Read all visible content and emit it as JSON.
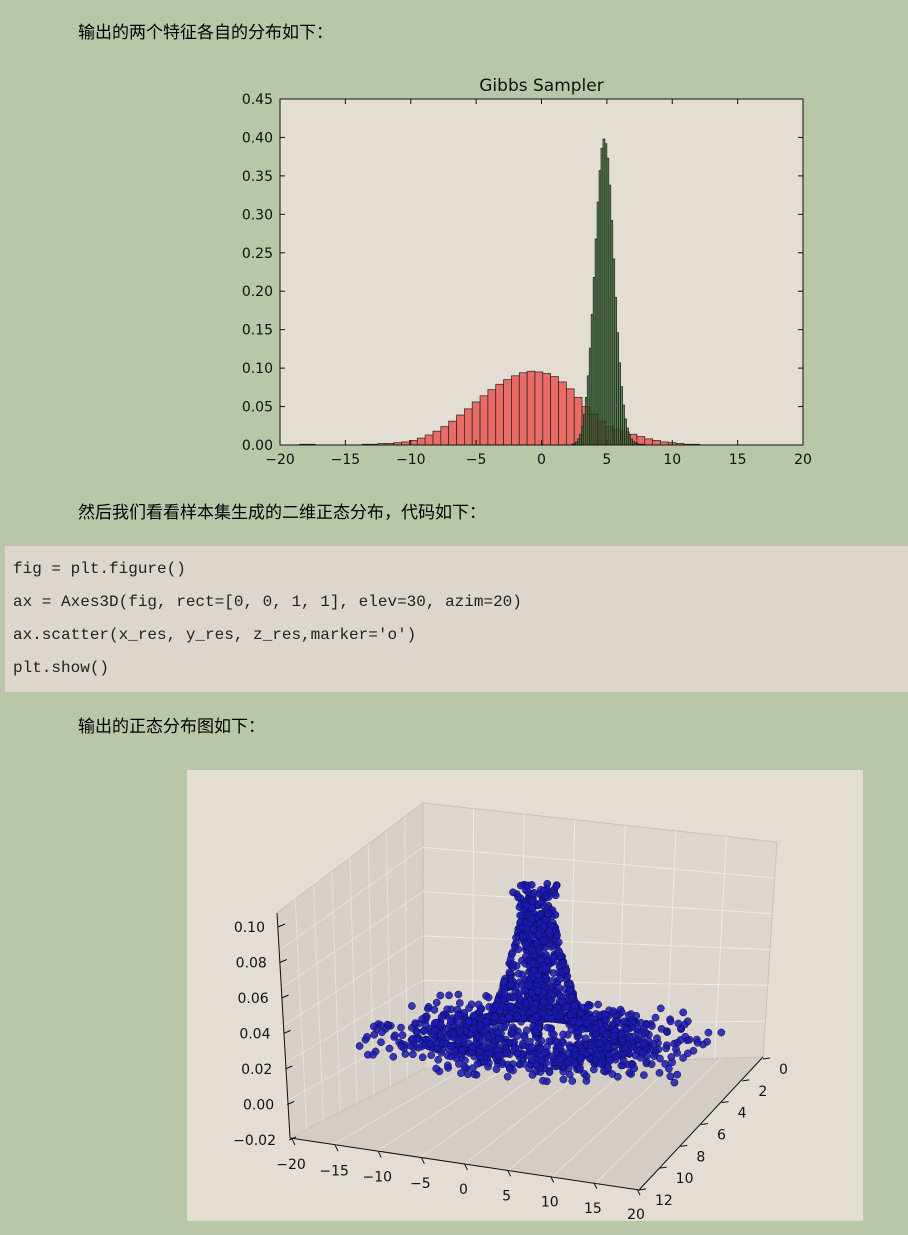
{
  "paragraphs": {
    "p1": "输出的两个特征各自的分布如下：",
    "p2": "然后我们看看样本集生成的二维正态分布，代码如下：",
    "p3": "输出的正态分布图如下："
  },
  "code_lines": [
    "fig = plt.figure()",
    "ax = Axes3D(fig, rect=[0, 0, 1, 1], elev=30, azim=20)",
    "ax.scatter(x_res, y_res, z_res,marker='o')",
    "plt.show()"
  ],
  "colors": {
    "page_bg": "#b8c7a8",
    "plot_bg": "#e4ddd4",
    "red_bar": "#e8645f",
    "green_bar": "#2d6b2a",
    "scatter_blue": "#1a1ab0"
  },
  "chart_data": [
    {
      "type": "bar",
      "title": "Gibbs Sampler",
      "xlim": [
        -20,
        20
      ],
      "ylim": [
        0,
        0.45
      ],
      "xticks": [
        "−20",
        "−15",
        "−10",
        "−5",
        "0",
        "5",
        "10",
        "15",
        "20"
      ],
      "yticks": [
        "0.00",
        "0.05",
        "0.10",
        "0.15",
        "0.20",
        "0.25",
        "0.30",
        "0.35",
        "0.40",
        "0.45"
      ],
      "grid": false,
      "series": [
        {
          "color": "#e8645f",
          "bin_width": 0.6,
          "x": [
            -18.5,
            -17.9,
            -13.7,
            -13.1,
            -12.5,
            -11.9,
            -11.3,
            -10.7,
            -10.1,
            -9.5,
            -8.9,
            -8.3,
            -7.7,
            -7.1,
            -6.5,
            -5.9,
            -5.3,
            -4.7,
            -4.1,
            -3.5,
            -2.9,
            -2.3,
            -1.7,
            -1.1,
            -0.5,
            0.1,
            0.7,
            1.3,
            1.9,
            2.5,
            3.1,
            3.7,
            4.3,
            4.9,
            5.5,
            6.1,
            6.7,
            7.3,
            7.9,
            8.5,
            9.1,
            9.7,
            10.3,
            10.9,
            11.5
          ],
          "values": [
            0.001,
            0.001,
            0.001,
            0.001,
            0.002,
            0.002,
            0.003,
            0.004,
            0.006,
            0.009,
            0.013,
            0.018,
            0.024,
            0.031,
            0.039,
            0.047,
            0.056,
            0.064,
            0.072,
            0.079,
            0.085,
            0.09,
            0.094,
            0.096,
            0.095,
            0.093,
            0.089,
            0.082,
            0.073,
            0.062,
            0.05,
            0.04,
            0.031,
            0.024,
            0.02,
            0.017,
            0.014,
            0.011,
            0.008,
            0.006,
            0.004,
            0.003,
            0.002,
            0.001,
            0.001
          ]
        },
        {
          "color": "#2d6b2a",
          "bin_width": 0.15,
          "x": [
            2.3,
            2.45,
            2.6,
            2.75,
            2.9,
            3.05,
            3.2,
            3.35,
            3.5,
            3.65,
            3.8,
            3.95,
            4.1,
            4.25,
            4.4,
            4.55,
            4.7,
            4.85,
            5.0,
            5.15,
            5.3,
            5.45,
            5.6,
            5.75,
            5.9,
            6.05,
            6.2,
            6.35,
            6.5,
            6.65,
            6.8,
            6.95,
            7.1,
            7.25,
            7.4,
            7.55,
            7.7
          ],
          "values": [
            0.001,
            0.002,
            0.004,
            0.008,
            0.014,
            0.024,
            0.04,
            0.062,
            0.09,
            0.126,
            0.17,
            0.218,
            0.268,
            0.316,
            0.357,
            0.386,
            0.398,
            0.392,
            0.373,
            0.338,
            0.292,
            0.242,
            0.192,
            0.146,
            0.107,
            0.076,
            0.052,
            0.034,
            0.022,
            0.014,
            0.008,
            0.005,
            0.003,
            0.002,
            0.001,
            0.001,
            0.001
          ]
        }
      ]
    },
    {
      "type": "scatter",
      "subtype": "3d",
      "elev": 30,
      "azim": 20,
      "zticks": [
        "0.10",
        "0.08",
        "0.06",
        "0.04",
        "0.02",
        "0.00",
        "−0.02"
      ],
      "xticks": [
        "−20",
        "−15",
        "−10",
        "−5",
        "0",
        "5",
        "10",
        "15",
        "20"
      ],
      "yticks": [
        "0",
        "2",
        "4",
        "6",
        "8",
        "10",
        "12"
      ],
      "marker": "o",
      "color": "#1a1ab0"
    }
  ]
}
